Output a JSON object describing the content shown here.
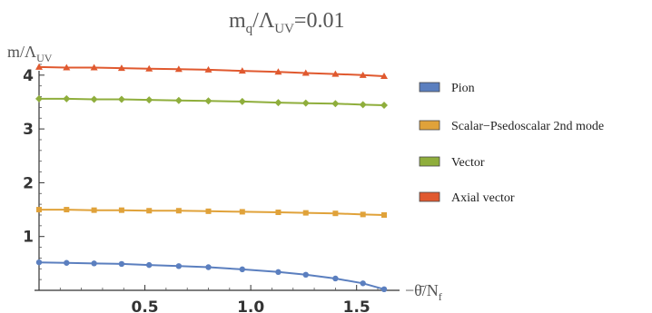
{
  "chart_data": {
    "type": "line",
    "title_main": "m",
    "title_sub1": "q",
    "title_mid": "/Λ",
    "title_sub2": "UV",
    "title_tail": "=0.01",
    "ylabel_main": "m/Λ",
    "ylabel_sub": "UV",
    "xlabel_main": "−θ̄/N",
    "xlabel_sub": "f",
    "xlim": [
      0,
      1.66
    ],
    "ylim": [
      0,
      4.25
    ],
    "xticks": [
      0.5,
      1.0,
      1.5
    ],
    "xtick_labels": [
      "0.5",
      "1.0",
      "1.5"
    ],
    "yticks": [
      1,
      2,
      3,
      4
    ],
    "ytick_labels": [
      "1",
      "2",
      "3",
      "4"
    ],
    "grid": false,
    "legend_position": "right",
    "series": [
      {
        "name": "Pion",
        "color": "#5b7fbf",
        "marker": "circle",
        "x": [
          0.0,
          0.13,
          0.26,
          0.39,
          0.52,
          0.66,
          0.8,
          0.96,
          1.13,
          1.26,
          1.4,
          1.53,
          1.63
        ],
        "y": [
          0.52,
          0.51,
          0.5,
          0.49,
          0.47,
          0.45,
          0.43,
          0.39,
          0.34,
          0.29,
          0.22,
          0.13,
          0.02
        ]
      },
      {
        "name": "Scalar−Psedoscalar 2nd mode",
        "color": "#e0a23a",
        "marker": "square",
        "x": [
          0.0,
          0.13,
          0.26,
          0.39,
          0.52,
          0.66,
          0.8,
          0.96,
          1.13,
          1.26,
          1.4,
          1.53,
          1.63
        ],
        "y": [
          1.5,
          1.5,
          1.49,
          1.49,
          1.48,
          1.48,
          1.47,
          1.46,
          1.45,
          1.44,
          1.43,
          1.41,
          1.4
        ]
      },
      {
        "name": "Vector",
        "color": "#8fae3c",
        "marker": "diamond",
        "x": [
          0.0,
          0.13,
          0.26,
          0.39,
          0.52,
          0.66,
          0.8,
          0.96,
          1.13,
          1.26,
          1.4,
          1.53,
          1.63
        ],
        "y": [
          3.56,
          3.56,
          3.55,
          3.55,
          3.54,
          3.53,
          3.52,
          3.51,
          3.49,
          3.48,
          3.47,
          3.45,
          3.44
        ]
      },
      {
        "name": "Axial vector",
        "color": "#e0592f",
        "marker": "triangle",
        "x": [
          0.0,
          0.13,
          0.26,
          0.39,
          0.52,
          0.66,
          0.8,
          0.96,
          1.13,
          1.26,
          1.4,
          1.53,
          1.63
        ],
        "y": [
          4.15,
          4.14,
          4.14,
          4.13,
          4.12,
          4.11,
          4.1,
          4.08,
          4.06,
          4.04,
          4.02,
          4.0,
          3.98
        ]
      }
    ]
  }
}
